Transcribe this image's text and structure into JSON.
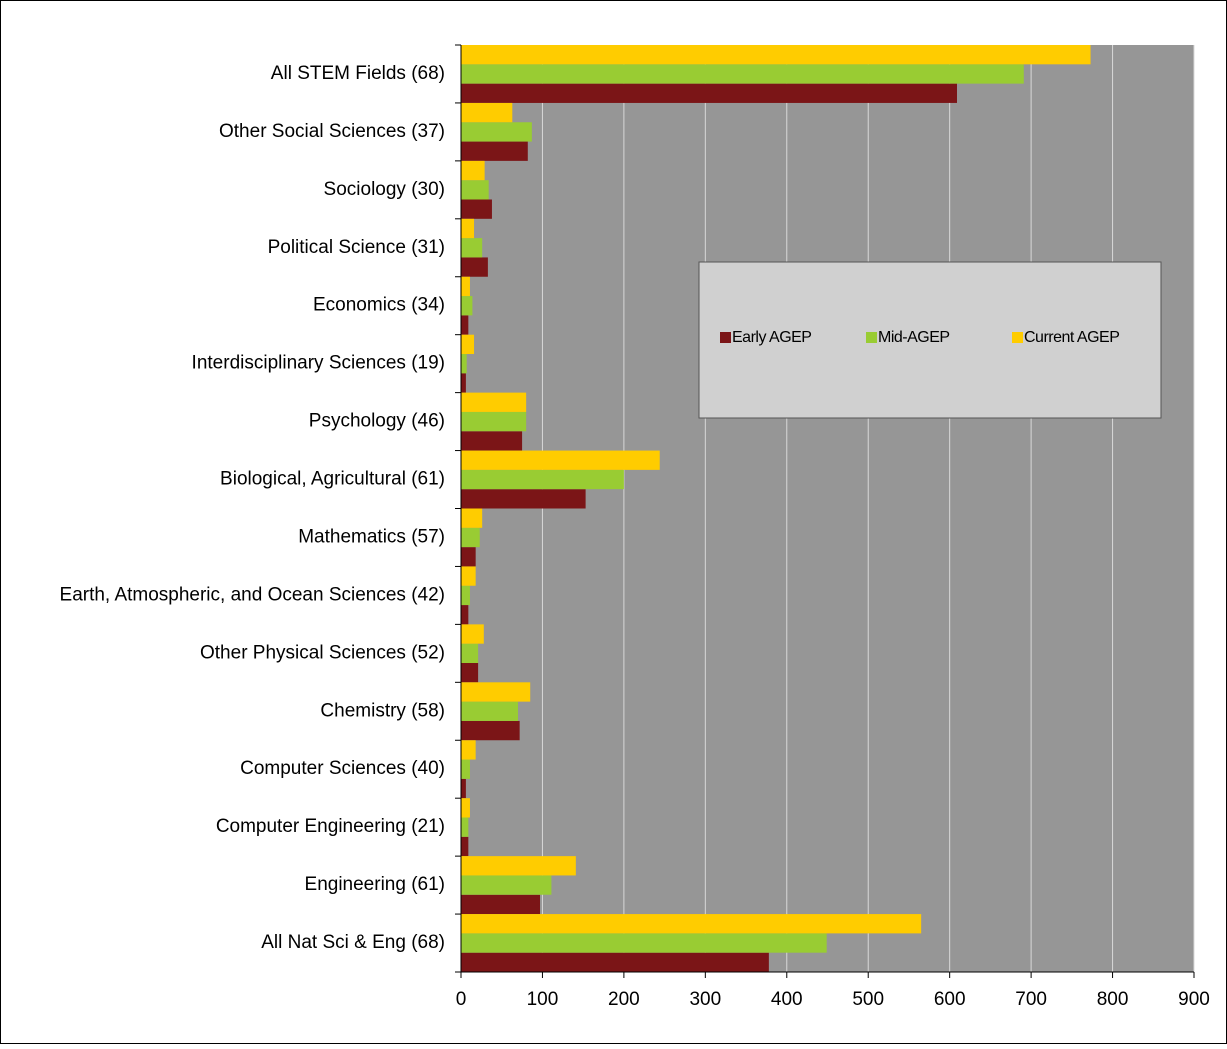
{
  "chart_data": {
    "type": "bar",
    "orientation": "horizontal",
    "categories": [
      "All STEM Fields (68)",
      "Other Social Sciences (37)",
      "Sociology (30)",
      "Political Science (31)",
      "Economics (34)",
      "Interdisciplinary Sciences (19)",
      "Psychology (46)",
      "Biological, Agricultural (61)",
      "Mathematics (57)",
      "Earth, Atmospheric, and Ocean Sciences (42)",
      "Other Physical Sciences (52)",
      "Chemistry (58)",
      "Computer Sciences (40)",
      "Computer Engineering (21)",
      "Engineering (61)",
      "All Nat Sci & Eng (68)"
    ],
    "series": [
      {
        "name": "Early AGEP",
        "color": "#7b1517",
        "values": [
          609,
          82,
          38,
          33,
          9,
          6,
          75,
          153,
          18,
          9,
          21,
          72,
          6,
          9,
          97,
          378
        ]
      },
      {
        "name": "Mid-AGEP",
        "color": "#99cc33",
        "values": [
          691,
          87,
          34,
          26,
          14,
          7,
          80,
          200,
          23,
          11,
          21,
          70,
          11,
          9,
          111,
          449
        ]
      },
      {
        "name": "Current AGEP",
        "color": "#ffcc00",
        "values": [
          773,
          63,
          29,
          16,
          11,
          16,
          80,
          244,
          26,
          18,
          28,
          85,
          18,
          11,
          141,
          565
        ]
      }
    ],
    "xlim": [
      0,
      900
    ],
    "xticks": [
      0,
      100,
      200,
      300,
      400,
      500,
      600,
      700,
      800,
      900
    ],
    "grid": true
  }
}
